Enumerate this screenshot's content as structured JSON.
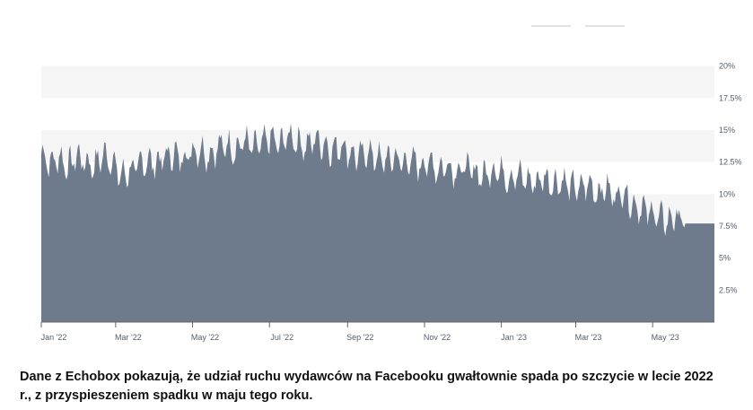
{
  "caption": "Dane z Echobox pokazują, że udział ruchu wydawców na Facebooku gwałtownie spada po szczycie w lecie 2022 r., z przyspieszeniem spadku w maju tego roku.",
  "colors": {
    "area": "#6e7b8c",
    "band": "#f5f5f5",
    "axis": "#666666",
    "tick_text": "#555e6b"
  },
  "chart_data": {
    "type": "area",
    "title": "",
    "xlabel": "",
    "ylabel": "",
    "y_ticks": [
      "2.5%",
      "5%",
      "7.5%",
      "10%",
      "12.5%",
      "15%",
      "17.5%",
      "20%"
    ],
    "x_ticks": [
      "Jan '22",
      "Mar '22",
      "May '22",
      "Jul '22",
      "Sep '22",
      "Nov '22",
      "Jan '23",
      "Mar '23",
      "May '23"
    ],
    "ylim": [
      0,
      22.5
    ],
    "x_range": [
      "2022-01-01",
      "2023-06-19"
    ],
    "y_axis_side": "right",
    "grid": "alternating horizontal bands",
    "series": [
      {
        "values_start": "2022-01-01",
        "values_interval_days": 7,
        "values": [
          13.2,
          12.4,
          12.9,
          12.1,
          13.0,
          12.5,
          12.2,
          13.1,
          12.6,
          11.4,
          11.8,
          12.2,
          12.6,
          12.4,
          12.9,
          13.1,
          12.8,
          13.3,
          13.5,
          13.0,
          13.6,
          13.9,
          13.4,
          14.2,
          13.6,
          13.9,
          14.4,
          13.8,
          14.6,
          14.1,
          13.7,
          14.3,
          13.9,
          13.4,
          13.8,
          13.2,
          12.9,
          13.3,
          12.8,
          12.6,
          12.9,
          12.4,
          12.6,
          12.2,
          12.5,
          11.9,
          12.3,
          11.7,
          12.1,
          11.8,
          11.4,
          11.8,
          11.9,
          11.2,
          11.5,
          11.1,
          10.9,
          11.3,
          10.8,
          11.0,
          10.6,
          10.4,
          10.8,
          10.1,
          10.5,
          9.8,
          10.2,
          9.2,
          8.9,
          8.6,
          8.2,
          7.9,
          8.3,
          7.7
        ]
      }
    ],
    "data_labels": []
  }
}
